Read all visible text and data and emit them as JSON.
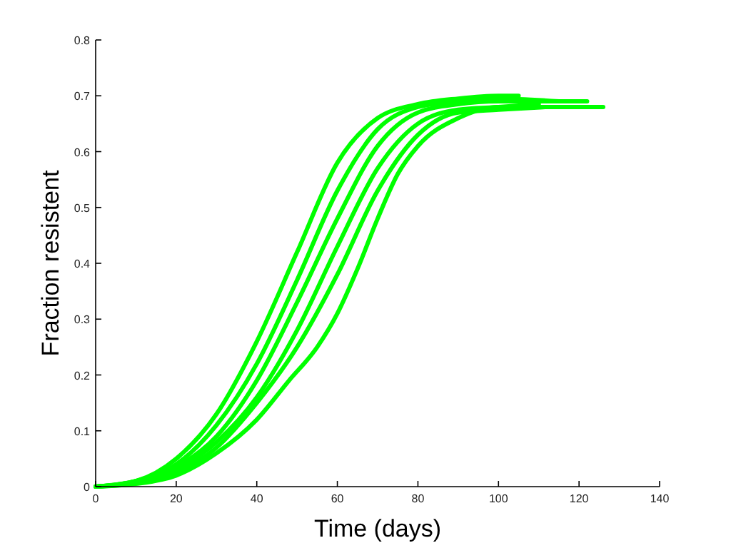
{
  "chart_data": {
    "type": "line",
    "xlabel": "Time (days)",
    "ylabel": "Fraction resistent",
    "xlim": [
      0,
      140
    ],
    "ylim": [
      0,
      0.8
    ],
    "xticks": [
      0,
      20,
      40,
      60,
      80,
      100,
      120,
      140
    ],
    "yticks": [
      0,
      0.1,
      0.2,
      0.3,
      0.4,
      0.5,
      0.6,
      0.7,
      0.8
    ],
    "line_style": "solid",
    "marker": "none",
    "series": [
      {
        "color": "#00ff00",
        "x": [
          0,
          10,
          20,
          30,
          40,
          50,
          60,
          70,
          80,
          90,
          100,
          105
        ],
        "values": [
          0,
          0.01,
          0.05,
          0.13,
          0.26,
          0.42,
          0.58,
          0.66,
          0.685,
          0.695,
          0.7,
          0.7
        ]
      },
      {
        "color": "#00ff00",
        "x": [
          0,
          10,
          20,
          30,
          40,
          50,
          60,
          70,
          80,
          90,
          100,
          115
        ],
        "values": [
          0,
          0.01,
          0.04,
          0.11,
          0.22,
          0.37,
          0.53,
          0.64,
          0.68,
          0.69,
          0.695,
          0.69
        ]
      },
      {
        "color": "#00ff00",
        "x": [
          0,
          10,
          20,
          30,
          40,
          50,
          60,
          70,
          80,
          90,
          100,
          122
        ],
        "values": [
          0,
          0.01,
          0.035,
          0.09,
          0.19,
          0.33,
          0.48,
          0.61,
          0.67,
          0.685,
          0.69,
          0.69
        ]
      },
      {
        "color": "#00ff00",
        "x": [
          0,
          10,
          20,
          30,
          40,
          50,
          60,
          70,
          80,
          90,
          100,
          110
        ],
        "values": [
          0,
          0.008,
          0.03,
          0.08,
          0.16,
          0.28,
          0.43,
          0.57,
          0.65,
          0.675,
          0.68,
          0.685
        ]
      },
      {
        "color": "#00ff00",
        "x": [
          0,
          10,
          20,
          30,
          40,
          50,
          60,
          70,
          80,
          90,
          100,
          112
        ],
        "values": [
          0,
          0.006,
          0.025,
          0.07,
          0.15,
          0.25,
          0.38,
          0.53,
          0.63,
          0.67,
          0.675,
          0.68
        ]
      },
      {
        "color": "#00ff00",
        "x": [
          0,
          10,
          20,
          30,
          40,
          48,
          55,
          60,
          65,
          70,
          75,
          80,
          90,
          100,
          110,
          126
        ],
        "values": [
          0,
          0.005,
          0.02,
          0.06,
          0.12,
          0.19,
          0.25,
          0.31,
          0.39,
          0.48,
          0.56,
          0.61,
          0.66,
          0.68,
          0.68,
          0.68
        ]
      }
    ]
  }
}
